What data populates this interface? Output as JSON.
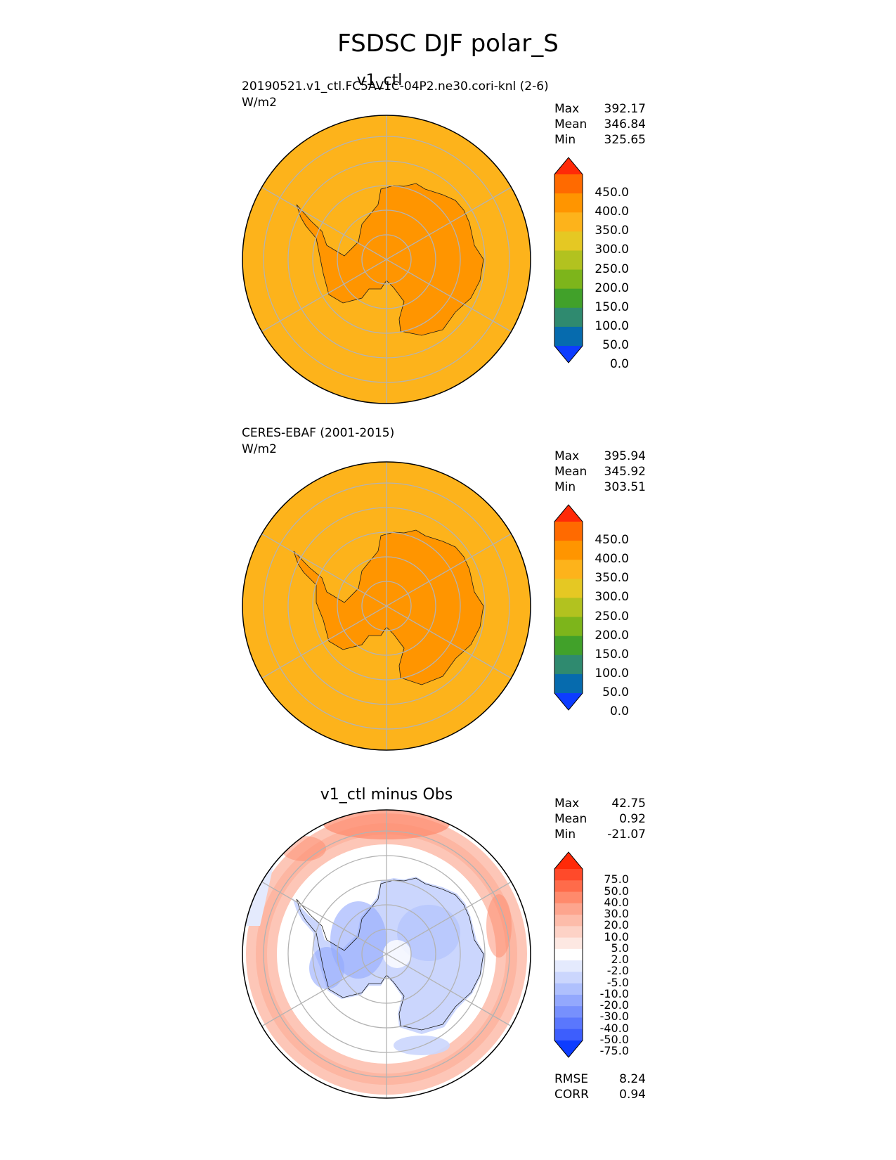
{
  "figure": {
    "title": "FSDSC DJF polar_S"
  },
  "panels": [
    {
      "subtitle": "v1_ctl",
      "case_label": "20190521.v1_ctl.FC5AV1C-04P2.ne30.cori-knl (2-6)",
      "units": "W/m2",
      "stats": [
        {
          "label": "Max",
          "value": "392.17"
        },
        {
          "label": "Mean",
          "value": "346.84"
        },
        {
          "label": "Min",
          "value": "325.65"
        }
      ],
      "colorbar_ticks": [
        "450.0",
        "400.0",
        "350.0",
        "300.0",
        "250.0",
        "200.0",
        "150.0",
        "100.0",
        "50.0",
        "0.0"
      ],
      "colorbar_colors": [
        "#ff2a08",
        "#ff6a00",
        "#ff9500",
        "#fdb31b",
        "#e5c823",
        "#b2c21f",
        "#7db51b",
        "#41a12a",
        "#2f8a6f",
        "#066bae",
        "#0d3cff"
      ],
      "ocean_color": "#fdb31b",
      "land_color": "#ff9500"
    },
    {
      "subtitle": "",
      "case_label": "CERES-EBAF (2001-2015)",
      "units": "W/m2",
      "stats": [
        {
          "label": "Max",
          "value": "395.94"
        },
        {
          "label": "Mean",
          "value": "345.92"
        },
        {
          "label": "Min",
          "value": "303.51"
        }
      ],
      "colorbar_ticks": [
        "450.0",
        "400.0",
        "350.0",
        "300.0",
        "250.0",
        "200.0",
        "150.0",
        "100.0",
        "50.0",
        "0.0"
      ],
      "colorbar_colors": [
        "#ff2a08",
        "#ff6a00",
        "#ff9500",
        "#fdb31b",
        "#e5c823",
        "#b2c21f",
        "#7db51b",
        "#41a12a",
        "#2f8a6f",
        "#066bae",
        "#0d3cff"
      ],
      "ocean_color": "#fdb31b",
      "land_color": "#ff9500"
    },
    {
      "subtitle": "v1_ctl minus Obs",
      "case_label": "",
      "units": "",
      "stats": [
        {
          "label": "Max",
          "value": "42.75"
        },
        {
          "label": "Mean",
          "value": "0.92"
        },
        {
          "label": "Min",
          "value": "-21.07"
        }
      ],
      "colorbar_ticks": [
        "75.0",
        "50.0",
        "40.0",
        "30.0",
        "20.0",
        "10.0",
        "5.0",
        "2.0",
        "-2.0",
        "-5.0",
        "-10.0",
        "-20.0",
        "-30.0",
        "-40.0",
        "-50.0",
        "-75.0"
      ],
      "colorbar_colors": [
        "#ff2a08",
        "#ff4a2a",
        "#ff6b4a",
        "#ff8a6c",
        "#fda58e",
        "#fdbcaa",
        "#fdd2c6",
        "#fde8e2",
        "#ffffff",
        "#e4eafd",
        "#cbd6fd",
        "#afc0fd",
        "#93a8fd",
        "#7790fd",
        "#5a77fd",
        "#3d5efd",
        "#0d3cff"
      ],
      "error_stats": [
        {
          "label": "RMSE",
          "value": "8.24"
        },
        {
          "label": "CORR",
          "value": "0.94"
        }
      ]
    }
  ]
}
